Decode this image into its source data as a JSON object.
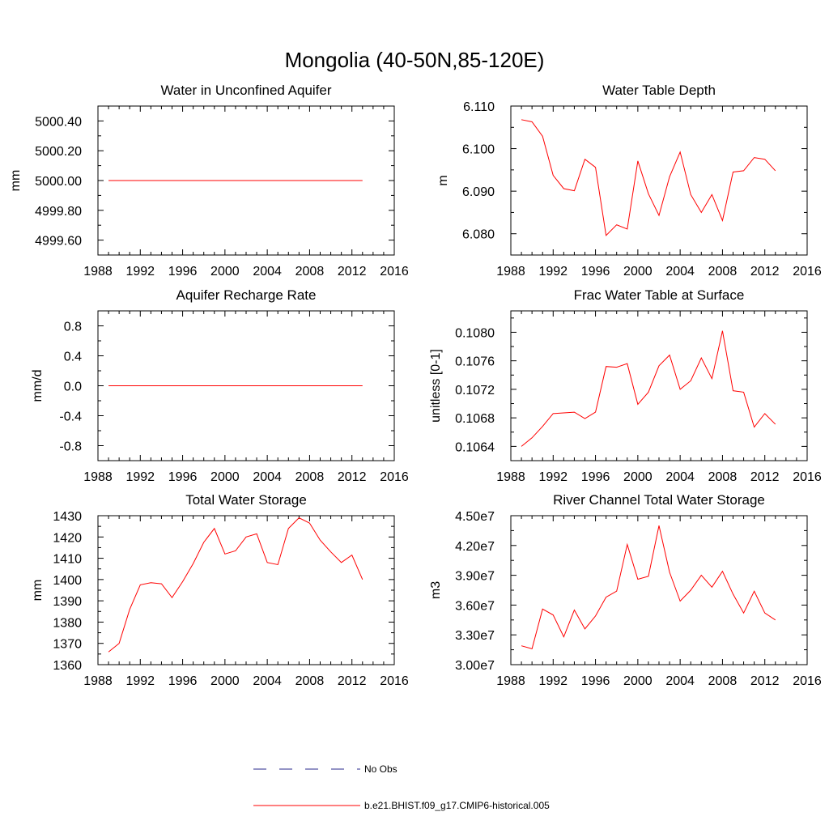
{
  "figure": {
    "title": "Mongolia (40-50N,85-120E)",
    "legend": [
      {
        "label": "No Obs",
        "color": "#2a2a8c",
        "dashed": true
      },
      {
        "label": "b.e21.BHIST.f09_g17.CMIP6-historical.005",
        "color": "#ff0000",
        "dashed": false
      }
    ]
  },
  "chart_data": [
    {
      "type": "line",
      "title": "Water in Unconfined Aquifer",
      "ylabel": "mm",
      "xlim": [
        1988,
        2016
      ],
      "xticks": [
        1988,
        1992,
        1996,
        2000,
        2004,
        2008,
        2012,
        2016
      ],
      "ylim": [
        4999.5,
        5000.5
      ],
      "yticks": [
        4999.6,
        4999.8,
        5000.0,
        5000.2,
        5000.4
      ],
      "ytick_labels": [
        "4999.60",
        "4999.80",
        "5000.00",
        "5000.20",
        "5000.40"
      ],
      "color": "#ff0000",
      "x": [
        1989,
        1990,
        1991,
        1992,
        1993,
        1994,
        1995,
        1996,
        1997,
        1998,
        1999,
        2000,
        2001,
        2002,
        2003,
        2004,
        2005,
        2006,
        2007,
        2008,
        2009,
        2010,
        2011,
        2012,
        2013
      ],
      "y": [
        5000.0,
        5000.0,
        5000.0,
        5000.0,
        5000.0,
        5000.0,
        5000.0,
        5000.0,
        5000.0,
        5000.0,
        5000.0,
        5000.0,
        5000.0,
        5000.0,
        5000.0,
        5000.0,
        5000.0,
        5000.0,
        5000.0,
        5000.0,
        5000.0,
        5000.0,
        5000.0,
        5000.0,
        5000.0
      ]
    },
    {
      "type": "line",
      "title": "Water Table Depth",
      "ylabel": "m",
      "xlim": [
        1988,
        2016
      ],
      "xticks": [
        1988,
        1992,
        1996,
        2000,
        2004,
        2008,
        2012,
        2016
      ],
      "ylim": [
        6.075,
        6.11
      ],
      "yticks": [
        6.08,
        6.09,
        6.1,
        6.11
      ],
      "ytick_labels": [
        "6.080",
        "6.090",
        "6.100",
        "6.110"
      ],
      "color": "#ff0000",
      "x": [
        1989,
        1990,
        1991,
        1992,
        1993,
        1994,
        1995,
        1996,
        1997,
        1998,
        1999,
        2000,
        2001,
        2002,
        2003,
        2004,
        2005,
        2006,
        2007,
        2008,
        2009,
        2010,
        2011,
        2012,
        2013
      ],
      "y": [
        6.1068,
        6.1063,
        6.1029,
        6.0937,
        6.0906,
        6.0901,
        6.0975,
        6.0956,
        6.0796,
        6.0821,
        6.0811,
        6.0971,
        6.0894,
        6.0843,
        6.0934,
        6.0992,
        6.0892,
        6.085,
        6.0892,
        6.0831,
        6.0945,
        6.0948,
        6.0979,
        6.0975,
        6.0948
      ]
    },
    {
      "type": "line",
      "title": "Aquifer Recharge Rate",
      "ylabel": "mm/d",
      "xlim": [
        1988,
        2016
      ],
      "xticks": [
        1988,
        1992,
        1996,
        2000,
        2004,
        2008,
        2012,
        2016
      ],
      "ylim": [
        -1.0,
        1.0
      ],
      "yticks": [
        -0.8,
        -0.4,
        0.0,
        0.4,
        0.8
      ],
      "ytick_labels": [
        "-0.8",
        "-0.4",
        "0.0",
        "0.4",
        "0.8"
      ],
      "color": "#ff0000",
      "x": [
        1989,
        1990,
        1991,
        1992,
        1993,
        1994,
        1995,
        1996,
        1997,
        1998,
        1999,
        2000,
        2001,
        2002,
        2003,
        2004,
        2005,
        2006,
        2007,
        2008,
        2009,
        2010,
        2011,
        2012,
        2013
      ],
      "y": [
        0,
        0,
        0,
        0,
        0,
        0,
        0,
        0,
        0,
        0,
        0,
        0,
        0,
        0,
        0,
        0,
        0,
        0,
        0,
        0,
        0,
        0,
        0,
        0,
        0
      ]
    },
    {
      "type": "line",
      "title": "Frac Water Table at Surface",
      "ylabel": "unitless [0-1]",
      "xlim": [
        1988,
        2016
      ],
      "xticks": [
        1988,
        1992,
        1996,
        2000,
        2004,
        2008,
        2012,
        2016
      ],
      "ylim": [
        0.1062,
        0.1083
      ],
      "yticks": [
        0.1064,
        0.1068,
        0.1072,
        0.1076,
        0.108
      ],
      "ytick_labels": [
        "0.1064",
        "0.1068",
        "0.1072",
        "0.1076",
        "0.1080"
      ],
      "color": "#ff0000",
      "x": [
        1989,
        1990,
        1991,
        1992,
        1993,
        1994,
        1995,
        1996,
        1997,
        1998,
        1999,
        2000,
        2001,
        2002,
        2003,
        2004,
        2005,
        2006,
        2007,
        2008,
        2009,
        2010,
        2011,
        2012,
        2013
      ],
      "y": [
        0.1064,
        0.10652,
        0.10668,
        0.10686,
        0.10687,
        0.10688,
        0.10679,
        0.10688,
        0.10752,
        0.10751,
        0.10756,
        0.10699,
        0.10716,
        0.10753,
        0.10768,
        0.1072,
        0.10732,
        0.10764,
        0.10735,
        0.10802,
        0.10718,
        0.10716,
        0.10667,
        0.10686,
        0.10671
      ]
    },
    {
      "type": "line",
      "title": "Total Water Storage",
      "ylabel": "mm",
      "xlim": [
        1988,
        2016
      ],
      "xticks": [
        1988,
        1992,
        1996,
        2000,
        2004,
        2008,
        2012,
        2016
      ],
      "ylim": [
        1360,
        1430
      ],
      "yticks": [
        1360,
        1370,
        1380,
        1390,
        1400,
        1410,
        1420,
        1430
      ],
      "ytick_labels": [
        "1360",
        "1370",
        "1380",
        "1390",
        "1400",
        "1410",
        "1420",
        "1430"
      ],
      "color": "#ff0000",
      "x": [
        1989,
        1990,
        1991,
        1992,
        1993,
        1994,
        1995,
        1996,
        1997,
        1998,
        1999,
        2000,
        2001,
        2002,
        2003,
        2004,
        2005,
        2006,
        2007,
        2008,
        2009,
        2010,
        2011,
        2012,
        2013
      ],
      "y": [
        1366,
        1370,
        1386,
        1397.5,
        1398.5,
        1398,
        1391.5,
        1399,
        1407.5,
        1417.5,
        1424,
        1412,
        1413.5,
        1420,
        1421.5,
        1408,
        1407,
        1424,
        1429,
        1426.5,
        1418.5,
        1413,
        1408,
        1411.5,
        1400
      ]
    },
    {
      "type": "line",
      "title": "River Channel Total Water Storage",
      "ylabel": "m3",
      "xlim": [
        1988,
        2016
      ],
      "xticks": [
        1988,
        1992,
        1996,
        2000,
        2004,
        2008,
        2012,
        2016
      ],
      "ylim": [
        30000000,
        45000000
      ],
      "yticks": [
        30000000,
        33000000,
        36000000,
        39000000,
        42000000,
        45000000
      ],
      "ytick_labels": [
        "3.00e7",
        "3.30e7",
        "3.60e7",
        "3.90e7",
        "4.20e7",
        "4.50e7"
      ],
      "color": "#ff0000",
      "x": [
        1989,
        1990,
        1991,
        1992,
        1993,
        1994,
        1995,
        1996,
        1997,
        1998,
        1999,
        2000,
        2001,
        2002,
        2003,
        2004,
        2005,
        2006,
        2007,
        2008,
        2009,
        2010,
        2011,
        2012,
        2013
      ],
      "y": [
        31900000,
        31600000,
        35600000,
        35000000,
        32800000,
        35500000,
        33600000,
        34900000,
        36800000,
        37400000,
        42100000,
        38600000,
        38900000,
        44000000,
        39300000,
        36400000,
        37500000,
        39000000,
        37800000,
        39400000,
        37100000,
        35200000,
        37400000,
        35200000,
        34500000
      ]
    }
  ]
}
